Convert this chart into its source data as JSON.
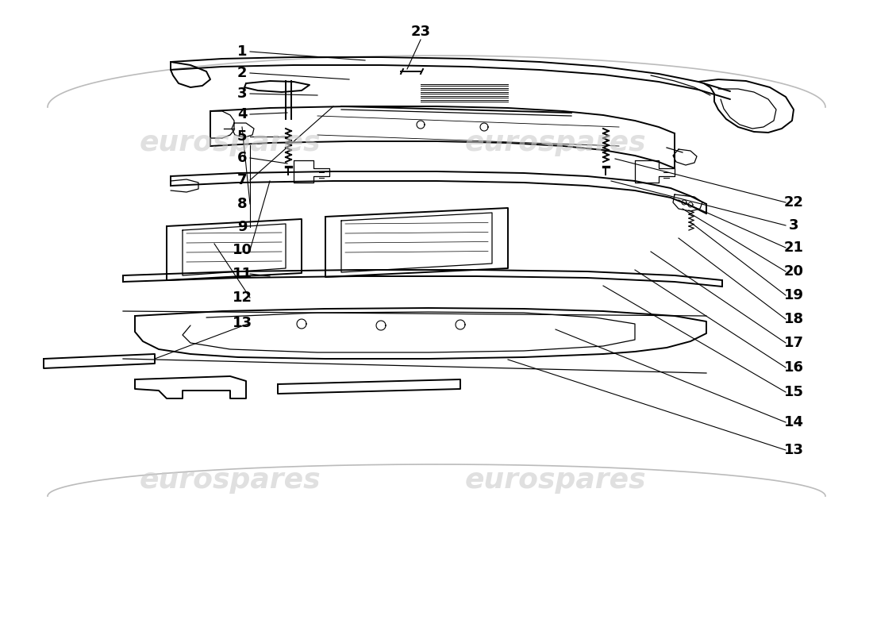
{
  "background_color": "#ffffff",
  "line_color": "#000000",
  "watermark_color": "#cccccc",
  "label_fontsize": 13,
  "label_fontweight": "bold",
  "left_labels": [
    [
      "1",
      290,
      735
    ],
    [
      "2",
      290,
      707
    ],
    [
      "3",
      290,
      682
    ],
    [
      "4",
      290,
      658
    ],
    [
      "5",
      290,
      630
    ],
    [
      "6",
      290,
      603
    ],
    [
      "7",
      290,
      575
    ],
    [
      "8",
      290,
      545
    ],
    [
      "9",
      290,
      516
    ],
    [
      "10",
      290,
      487
    ],
    [
      "11",
      290,
      457
    ],
    [
      "12",
      290,
      427
    ],
    [
      "13",
      290,
      395
    ]
  ],
  "right_labels": [
    [
      "22",
      1005,
      545
    ],
    [
      "3",
      1005,
      517
    ],
    [
      "21",
      1005,
      488
    ],
    [
      "20",
      1005,
      458
    ],
    [
      "19",
      1005,
      428
    ],
    [
      "18",
      1005,
      398
    ],
    [
      "17",
      1005,
      368
    ],
    [
      "16",
      1005,
      337
    ],
    [
      "15",
      1005,
      306
    ],
    [
      "14",
      1005,
      268
    ],
    [
      "13",
      1005,
      233
    ]
  ],
  "top_label": [
    "23",
    530,
    760
  ]
}
